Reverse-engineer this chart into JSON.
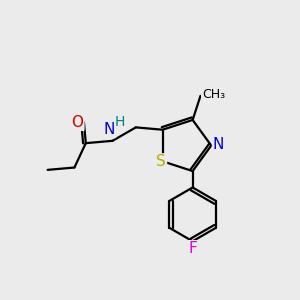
{
  "bg_color": "#ebebeb",
  "bond_color": "#000000",
  "atom_colors": {
    "O": "#cc0000",
    "N": "#0000dd",
    "H": "#008080",
    "S": "#bbaa00",
    "F": "#dd00dd",
    "N_ring": "#0000dd"
  },
  "font_size": 10,
  "line_width": 1.6
}
